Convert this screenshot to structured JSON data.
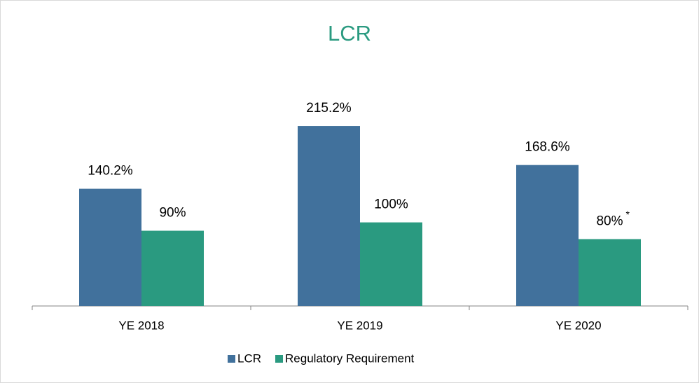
{
  "chart_data": {
    "type": "bar",
    "title": "LCR",
    "categories": [
      "YE 2018",
      "YE 2019",
      "YE 2020"
    ],
    "series": [
      {
        "name": "LCR",
        "color": "#41719c",
        "values": [
          140.2,
          215.2,
          168.6
        ],
        "value_labels": [
          "140.2%",
          "215.2%",
          "168.6%"
        ]
      },
      {
        "name": "Regulatory Requirement",
        "color": "#2a9a80",
        "values": [
          90,
          100,
          80
        ],
        "value_labels": [
          "90%",
          "100%",
          "80%"
        ],
        "annotation": "*"
      }
    ],
    "title_color": "#2a9a80",
    "legend": "bottom"
  }
}
